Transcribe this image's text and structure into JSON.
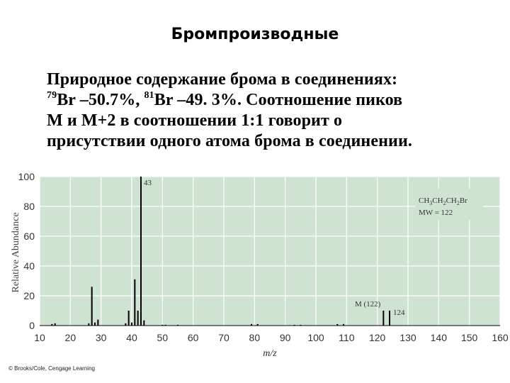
{
  "slide": {
    "title": "Бромпроизводные",
    "body_line1": "Природное содержание брома в соединениях:",
    "iso1_mass": "79",
    "iso1_text": "Br –50.7%, ",
    "iso2_mass": "81",
    "iso2_text": "Br –49. 3%. Соотношение пиков",
    "body_line3": "М и М+2 в соотношении 1:1 говорит о",
    "body_line4": "присутствии одного атома брома в соединении.",
    "credit": "© Brooks/Cole, Cengage Learning"
  },
  "chart_data": {
    "type": "bar",
    "ylabel": "Relative Abundance",
    "xlabel": "m/z",
    "xlim": [
      10,
      160
    ],
    "ylim": [
      0,
      100
    ],
    "xticks": [
      10,
      20,
      30,
      40,
      50,
      60,
      70,
      80,
      90,
      100,
      110,
      120,
      130,
      140,
      150,
      160
    ],
    "yticks": [
      0,
      20,
      40,
      60,
      80,
      100
    ],
    "grid": true,
    "colors": {
      "plot_bg": "#cfe3d2",
      "grid": "#ffffff",
      "bar": "#000000"
    },
    "annotation": {
      "formula_prefix": "CH",
      "formula_sub": "3",
      "formula_mid1": "CH",
      "formula_sub2": "2",
      "formula_mid2": "CH",
      "formula_sub3": "2",
      "formula_end": "Br",
      "mw": "MW = 122"
    },
    "peak_labels": [
      {
        "x": 43,
        "y": 100,
        "text": "43"
      },
      {
        "x": 122,
        "y": 10,
        "text": "M (122)"
      },
      {
        "x": 124,
        "y": 10,
        "text": "124"
      }
    ],
    "peaks": [
      {
        "x": 14,
        "y": 1
      },
      {
        "x": 15,
        "y": 1.5
      },
      {
        "x": 26,
        "y": 1.5
      },
      {
        "x": 27,
        "y": 26
      },
      {
        "x": 28,
        "y": 2
      },
      {
        "x": 29,
        "y": 4
      },
      {
        "x": 38,
        "y": 1.5
      },
      {
        "x": 39,
        "y": 10
      },
      {
        "x": 40,
        "y": 2
      },
      {
        "x": 41,
        "y": 31
      },
      {
        "x": 42,
        "y": 10
      },
      {
        "x": 43,
        "y": 100
      },
      {
        "x": 44,
        "y": 3.5
      },
      {
        "x": 50,
        "y": 0.5
      },
      {
        "x": 51,
        "y": 0.5
      },
      {
        "x": 55,
        "y": 0.5
      },
      {
        "x": 79,
        "y": 1
      },
      {
        "x": 81,
        "y": 1
      },
      {
        "x": 93,
        "y": 0.5
      },
      {
        "x": 95,
        "y": 0.5
      },
      {
        "x": 107,
        "y": 1
      },
      {
        "x": 109,
        "y": 1
      },
      {
        "x": 122,
        "y": 10
      },
      {
        "x": 124,
        "y": 10
      }
    ]
  }
}
